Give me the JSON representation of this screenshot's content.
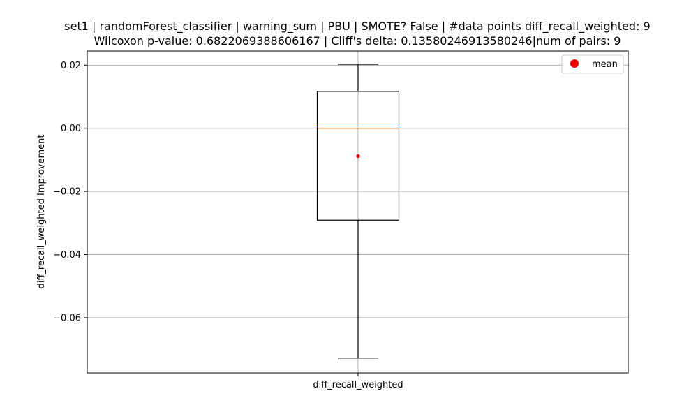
{
  "chart_data": {
    "type": "box",
    "title_line1": "set1 | randomForest_classifier | warning_sum | PBU | SMOTE? False | #data points diff_recall_weighted: 9",
    "title_line2": "Wilcoxon p-value: 0.6822069388606167 | Cliff's delta: 0.13580246913580246|num of pairs: 9",
    "xlabel": "",
    "ylabel": "diff_recall_weighted Improvement",
    "categories": [
      "diff_recall_weighted"
    ],
    "ylim": [
      -0.0775,
      0.0245
    ],
    "yticks": [
      0.02,
      0.0,
      -0.02,
      -0.04,
      -0.06
    ],
    "ytick_labels": [
      "0.02",
      "0.00",
      "−0.02",
      "−0.04",
      "−0.06"
    ],
    "grid": true,
    "box": {
      "whisker_low": -0.0728,
      "q1": -0.0291,
      "median": 0.0,
      "q3": 0.0117,
      "whisker_high": 0.0203,
      "mean": -0.0088
    },
    "legend": {
      "position": "top-right",
      "entries": [
        {
          "label": "mean",
          "color": "#ff0000",
          "marker": "circle"
        }
      ]
    },
    "colors": {
      "box": "#000000",
      "median": "#ff7f0e",
      "mean": "#ff0000",
      "grid": "#b0b0b0"
    }
  }
}
